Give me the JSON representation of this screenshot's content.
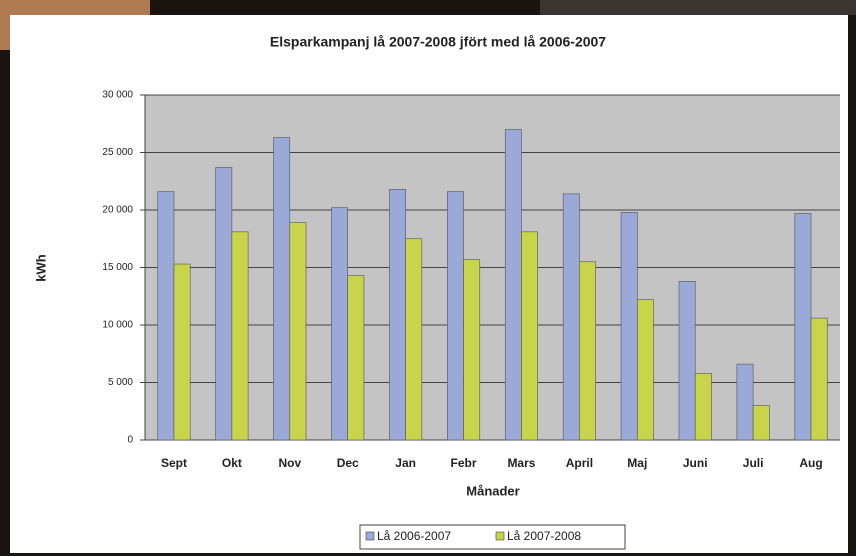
{
  "chart_data": {
    "type": "bar",
    "title": "Elsparkampanj lå 2007-2008 jfört med lå 2006-2007",
    "y_label": "kWh",
    "x_label": "Månader",
    "categories": [
      "Sept",
      "Okt",
      "Nov",
      "Dec",
      "Jan",
      "Febr",
      "Mars",
      "April",
      "Maj",
      "Juni",
      "Juli",
      "Aug"
    ],
    "series": [
      {
        "name": "Lå 2006-2007",
        "color": "#9aa9d8",
        "values": [
          21600,
          23700,
          26300,
          20200,
          21800,
          21600,
          27000,
          21400,
          19800,
          13800,
          6600,
          19700
        ]
      },
      {
        "name": "Lå 2007-2008",
        "color": "#c8d44a",
        "values": [
          15300,
          18100,
          18900,
          14300,
          17500,
          15700,
          18100,
          15500,
          12200,
          5800,
          3000,
          10600
        ]
      }
    ],
    "ylim": [
      0,
      30000
    ],
    "yticks": [
      0,
      {
        "value": 5000,
        "label": "5 000"
      },
      {
        "value": 10000,
        "label": "10 000"
      },
      {
        "value": 15000,
        "label": "15 000"
      },
      {
        "value": 20000,
        "label": "20 000"
      },
      {
        "value": 25000,
        "label": "25 000"
      },
      {
        "value": 30000,
        "label": "30 000"
      }
    ],
    "grid": true,
    "legend": "bottom"
  }
}
